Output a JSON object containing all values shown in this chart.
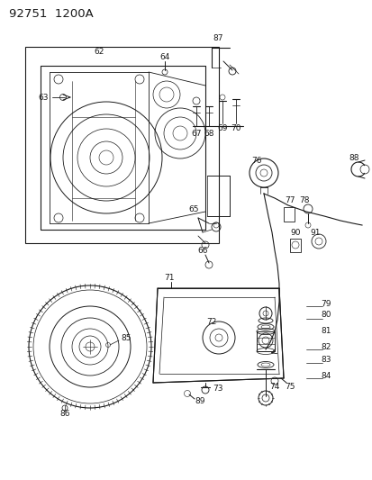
{
  "title": "92751  1200A",
  "bg_color": "#ffffff",
  "line_color": "#1a1a1a",
  "title_fontsize": 9.5,
  "label_fontsize": 6.5,
  "fig_width": 4.14,
  "fig_height": 5.33,
  "dpi": 100
}
